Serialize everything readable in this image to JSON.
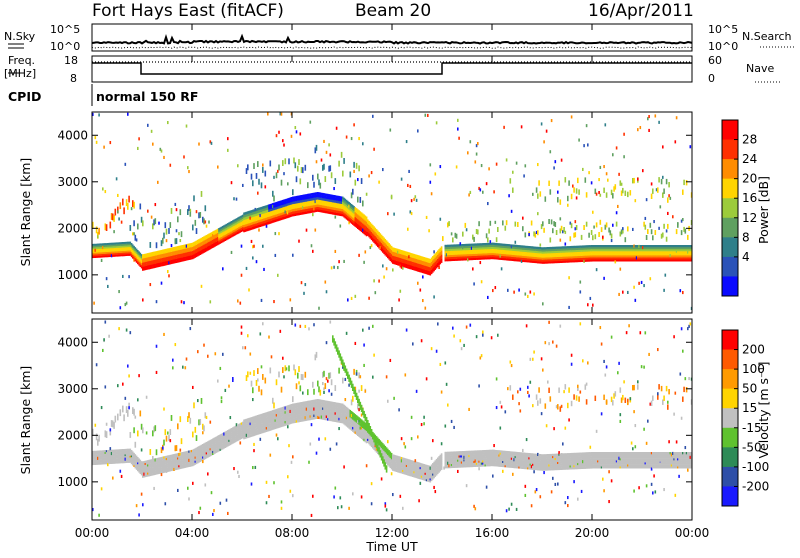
{
  "header": {
    "station": "Fort Hays East (fitACF)",
    "beam": "Beam 20",
    "date": "16/Apr/2011"
  },
  "status_panel": {
    "nsky_label": "N.Sky",
    "nsky_ticks": [
      "10^5",
      "10^0"
    ],
    "nsearch_label": "N.Search",
    "nsearch_ticks": [
      "10^5",
      "10^0"
    ],
    "freq_label_1": "Freq.",
    "freq_label_2": "[MHz]",
    "freq_ticks": [
      "18",
      "8"
    ],
    "nave_label": "Nave",
    "nave_ticks": [
      "60",
      "0"
    ],
    "cpid_label": "CPID",
    "cpid_text": "normal 150 RF"
  },
  "chart_data": [
    {
      "type": "heatmap",
      "name": "power",
      "ylabel": "Slant Range [km]",
      "yticks": [
        1000,
        2000,
        3000,
        4000
      ],
      "ylim": [
        180,
        4500
      ],
      "xlabel": "Time UT",
      "xticks": [
        "00:00",
        "04:00",
        "08:00",
        "12:00",
        "16:00",
        "20:00",
        "00:00"
      ],
      "xlim_hours": [
        0,
        24
      ],
      "colorbar_label": "Power [dB]",
      "colorbar_ticks": [
        "4",
        "8",
        "12",
        "16",
        "20",
        "24",
        "28"
      ],
      "colorbar_colors": [
        "#0a0aff",
        "#2a52b8",
        "#2f7f8a",
        "#5fa060",
        "#9ccb3b",
        "#ffd400",
        "#ff8c00",
        "#ff3000",
        "#ff0000"
      ],
      "main_band_center_km": [
        {
          "t": 0.0,
          "r": 1500
        },
        {
          "t": 1.5,
          "r": 1550
        },
        {
          "t": 2.0,
          "r": 1250
        },
        {
          "t": 4.0,
          "r": 1500
        },
        {
          "t": 6.0,
          "r": 2100
        },
        {
          "t": 8.0,
          "r": 2450
        },
        {
          "t": 9.0,
          "r": 2550
        },
        {
          "t": 10.0,
          "r": 2450
        },
        {
          "t": 11.0,
          "r": 2000
        },
        {
          "t": 12.0,
          "r": 1400
        },
        {
          "t": 13.5,
          "r": 1150
        },
        {
          "t": 14.0,
          "r": 1450
        },
        {
          "t": 16.0,
          "r": 1500
        },
        {
          "t": 18.0,
          "r": 1400
        },
        {
          "t": 20.0,
          "r": 1450
        },
        {
          "t": 24.0,
          "r": 1450
        }
      ]
    },
    {
      "type": "heatmap",
      "name": "velocity",
      "ylabel": "Slant Range [km]",
      "yticks": [
        1000,
        2000,
        3000,
        4000
      ],
      "ylim": [
        180,
        4500
      ],
      "xlabel": "Time UT",
      "xticks": [
        "00:00",
        "04:00",
        "08:00",
        "12:00",
        "16:00",
        "20:00",
        "00:00"
      ],
      "xlim_hours": [
        0,
        24
      ],
      "colorbar_label": "Velocity [m s⁻¹]",
      "colorbar_ticks": [
        "200",
        "100",
        "50",
        "15",
        "-15",
        "-50",
        "-100",
        "-200"
      ],
      "colorbar_colors": [
        "#1a1aff",
        "#2e4fa8",
        "#2e8b57",
        "#5fc22f",
        "#c0c0c0",
        "#ffd400",
        "#ff9a00",
        "#ff5a00",
        "#ff0000"
      ]
    }
  ],
  "axis": {
    "xlabel": "Time UT",
    "xticks": [
      "00:00",
      "04:00",
      "08:00",
      "12:00",
      "16:00",
      "20:00",
      "00:00"
    ]
  },
  "colors": {
    "axis": "#000000",
    "background": "#ffffff",
    "ground_scatter": "#c0c0c0"
  }
}
